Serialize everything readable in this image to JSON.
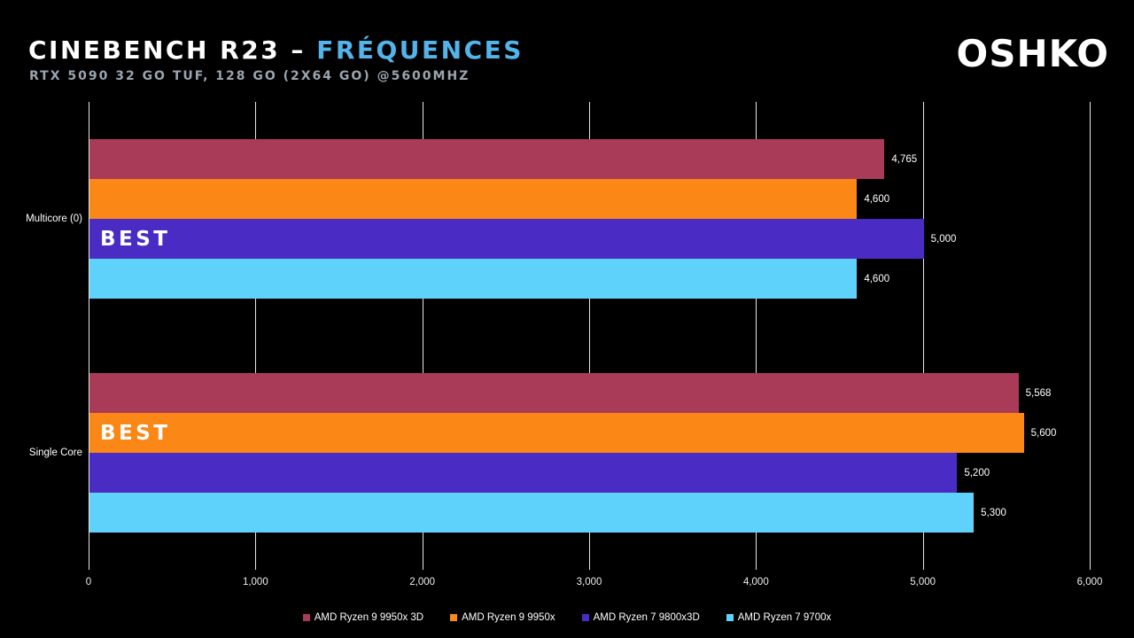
{
  "page": {
    "background": "#000000"
  },
  "header": {
    "title_main": "CINEBENCH R23 – ",
    "title_accent": "FRÉQUENCES",
    "title_accent_color": "#53B4EA",
    "subtitle": "RTX 5090 32 GO TUF, 128 GO (2X64 GO) @5600MHZ",
    "subtitle_color": "#9AA5AF",
    "logo": "OSHKO"
  },
  "chart_data": {
    "type": "bar",
    "orientation": "horizontal",
    "title": "CINEBENCH R23 – FRÉQUENCES",
    "subtitle": "RTX 5090 32 GO TUF, 128 GO (2X64 GO) @5600MHZ",
    "categories": [
      "Multicore (0)",
      "Single Core"
    ],
    "series": [
      {
        "name": "AMD Ryzen 9 9950x 3D",
        "color": "#A93A58",
        "values": [
          4765,
          5568
        ],
        "data_labels": [
          "4,765",
          "5,568"
        ]
      },
      {
        "name": "AMD Ryzen 9 9950x",
        "color": "#FA8716",
        "values": [
          4600,
          5600
        ],
        "data_labels": [
          "4,600",
          "5,600"
        ]
      },
      {
        "name": "AMD Ryzen 7 9800x3D",
        "color": "#4A2CC4",
        "values": [
          5000,
          5200
        ],
        "data_labels": [
          "5,000",
          "5,200"
        ]
      },
      {
        "name": "AMD Ryzen 7 9700x",
        "color": "#5ED2FB",
        "values": [
          4600,
          5300
        ],
        "data_labels": [
          "4,600",
          "5,300"
        ]
      }
    ],
    "annotations": [
      {
        "label": "BEST",
        "category_index": 0,
        "series_index": 2
      },
      {
        "label": "BEST",
        "category_index": 1,
        "series_index": 1
      }
    ],
    "xlim": [
      0,
      6000
    ],
    "x_ticks": [
      "0",
      "1,000",
      "2,000",
      "3,000",
      "4,000",
      "5,000",
      "6,000"
    ],
    "grid": true,
    "gridline_color": "#E6E6E6",
    "text_color": "#FFFFFF",
    "legend_position": "bottom"
  }
}
